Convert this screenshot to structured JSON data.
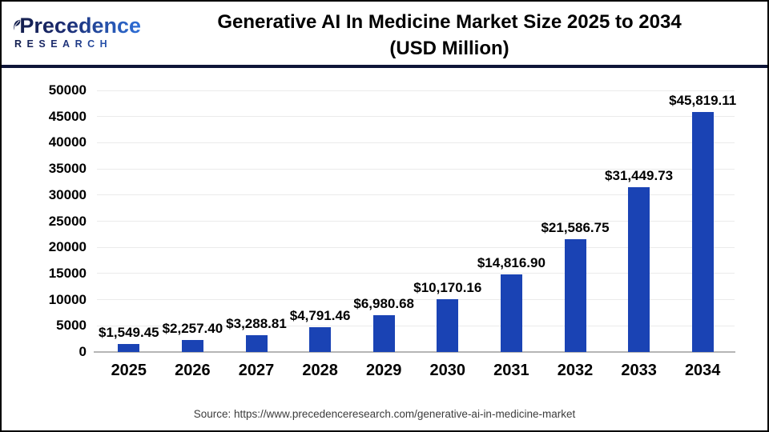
{
  "logo": {
    "name": "Precedence",
    "subtitle": "RESEARCH"
  },
  "header": {
    "title_line1": "Generative AI In Medicine Market Size 2025 to 2034",
    "title_line2": "(USD Million)"
  },
  "footer": {
    "source": "Source: https://www.precedenceresearch.com/generative-ai-in-medicine-market"
  },
  "colors": {
    "bar": "#1a43b4",
    "divider": "#0e1538",
    "gridline": "#ebebeb",
    "baseline": "#b5b5b5",
    "logo_dark": "#1b2a6e",
    "logo_light": "#2e6fd8",
    "title_text": "#000000",
    "source_text": "#3c3c3c"
  },
  "chart_data": {
    "type": "bar",
    "title": "Generative AI In Medicine Market Size 2025 to 2034 (USD Million)",
    "categories": [
      "2025",
      "2026",
      "2027",
      "2028",
      "2029",
      "2030",
      "2031",
      "2032",
      "2033",
      "2034"
    ],
    "values": [
      1549.45,
      2257.4,
      3288.81,
      4791.46,
      6980.68,
      10170.16,
      14816.9,
      21586.75,
      31449.73,
      45819.11
    ],
    "bar_labels": [
      "$1,549.45",
      "$2,257.40",
      "$3,288.81",
      "$4,791.46",
      "$6,980.68",
      "$10,170.16",
      "$14,816.90",
      "$21,586.75",
      "$31,449.73",
      "$45,819.11"
    ],
    "xlabel": "",
    "ylabel": "",
    "ylim": [
      0,
      50000
    ],
    "yticks": [
      0,
      5000,
      10000,
      15000,
      20000,
      25000,
      30000,
      35000,
      40000,
      45000,
      50000
    ],
    "grid": true,
    "legend": false,
    "bar_color": "#1a43b4"
  }
}
